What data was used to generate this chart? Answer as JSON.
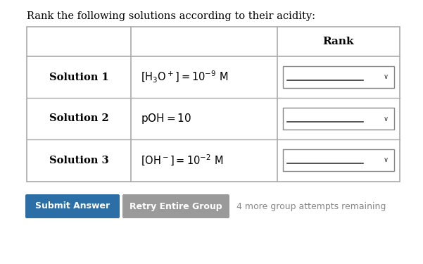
{
  "title": "Rank the following solutions according to their acidity:",
  "title_color": "#000000",
  "title_fontsize": 10.5,
  "background_color": "#ffffff",
  "header_label": "Rank",
  "rows": [
    {
      "label": "Solution 1"
    },
    {
      "label": "Solution 2"
    },
    {
      "label": "Solution 3"
    }
  ],
  "submit_btn_color": "#2c6fa6",
  "submit_btn_text": "Submit Answer",
  "submit_btn_text_color": "#ffffff",
  "retry_btn_color": "#9a9a9a",
  "retry_btn_text": "Retry Entire Group",
  "retry_btn_text_color": "#ffffff",
  "remaining_text": "4 more group attempts remaining",
  "remaining_text_color": "#888888",
  "table_border_color": "#aaaaaa",
  "text_color": "#000000"
}
